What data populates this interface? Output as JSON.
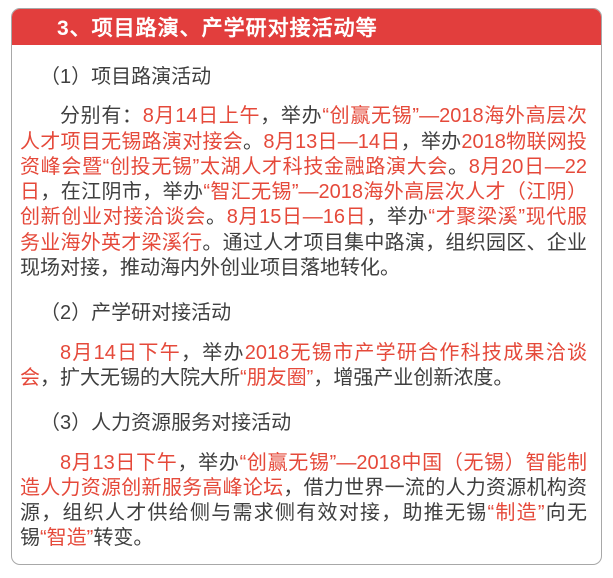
{
  "colors": {
    "banner_bg": "#e23e3d",
    "banner_text": "#ffffff",
    "body_text": "#3f3f3f",
    "highlight_text": "#e5493a",
    "card_border": "#a8a8a8",
    "page_bg": "#ffffff"
  },
  "header": {
    "title": "3、项目路演、产学研对接活动等"
  },
  "sections": [
    {
      "heading": "（1）项目路演活动",
      "paragraphs": [
        {
          "segments": [
            {
              "text": "分别有：",
              "highlight": false
            },
            {
              "text": "8月14日上午",
              "highlight": true
            },
            {
              "text": "，举办",
              "highlight": false
            },
            {
              "text": "“创赢无锡”—2018海外高层次人才项目无锡路演对接会",
              "highlight": true
            },
            {
              "text": "。",
              "highlight": false
            },
            {
              "text": "8月13日—14日",
              "highlight": true
            },
            {
              "text": "，举办",
              "highlight": false
            },
            {
              "text": "2018物联网投资峰会暨“创投无锡”太湖人才科技金融路演大会",
              "highlight": true
            },
            {
              "text": "。",
              "highlight": false
            },
            {
              "text": "8月20日—22日",
              "highlight": true
            },
            {
              "text": "，在江阴市，举办",
              "highlight": false
            },
            {
              "text": "“智汇无锡”—2018海外高层次人才（江阴）创新创业对接洽谈会",
              "highlight": true
            },
            {
              "text": "。",
              "highlight": false
            },
            {
              "text": "8月15日—16日",
              "highlight": true
            },
            {
              "text": "，举办",
              "highlight": false
            },
            {
              "text": "“才聚梁溪”现代服务业海外英才梁溪行",
              "highlight": true
            },
            {
              "text": "。通过人才项目集中路演，组织园区、企业现场对接，推动海内外创业项目落地转化。",
              "highlight": false
            }
          ]
        }
      ]
    },
    {
      "heading": "（2）产学研对接活动",
      "paragraphs": [
        {
          "segments": [
            {
              "text": "8月14日下午",
              "highlight": true
            },
            {
              "text": "，举办",
              "highlight": false
            },
            {
              "text": "2018无锡市产学研合作科技成果洽谈会",
              "highlight": true
            },
            {
              "text": "，扩大无锡的大院大所",
              "highlight": false
            },
            {
              "text": "“朋友圈”",
              "highlight": true
            },
            {
              "text": "，增强产业创新浓度。",
              "highlight": false
            }
          ]
        }
      ]
    },
    {
      "heading": "（3）人力资源服务对接活动",
      "paragraphs": [
        {
          "segments": [
            {
              "text": "8月13日下午",
              "highlight": true
            },
            {
              "text": "，举办",
              "highlight": false
            },
            {
              "text": "“创赢无锡”—2018中国（无锡）智能制造人力资源创新服务高峰论坛",
              "highlight": true
            },
            {
              "text": "，借力世界一流的人力资源机构资源，组织人才供给侧与需求侧有效对接，助推无锡",
              "highlight": false
            },
            {
              "text": "“制造”",
              "highlight": true
            },
            {
              "text": "向无锡",
              "highlight": false
            },
            {
              "text": "“智造”",
              "highlight": true
            },
            {
              "text": "转变。",
              "highlight": false
            }
          ]
        }
      ]
    }
  ]
}
